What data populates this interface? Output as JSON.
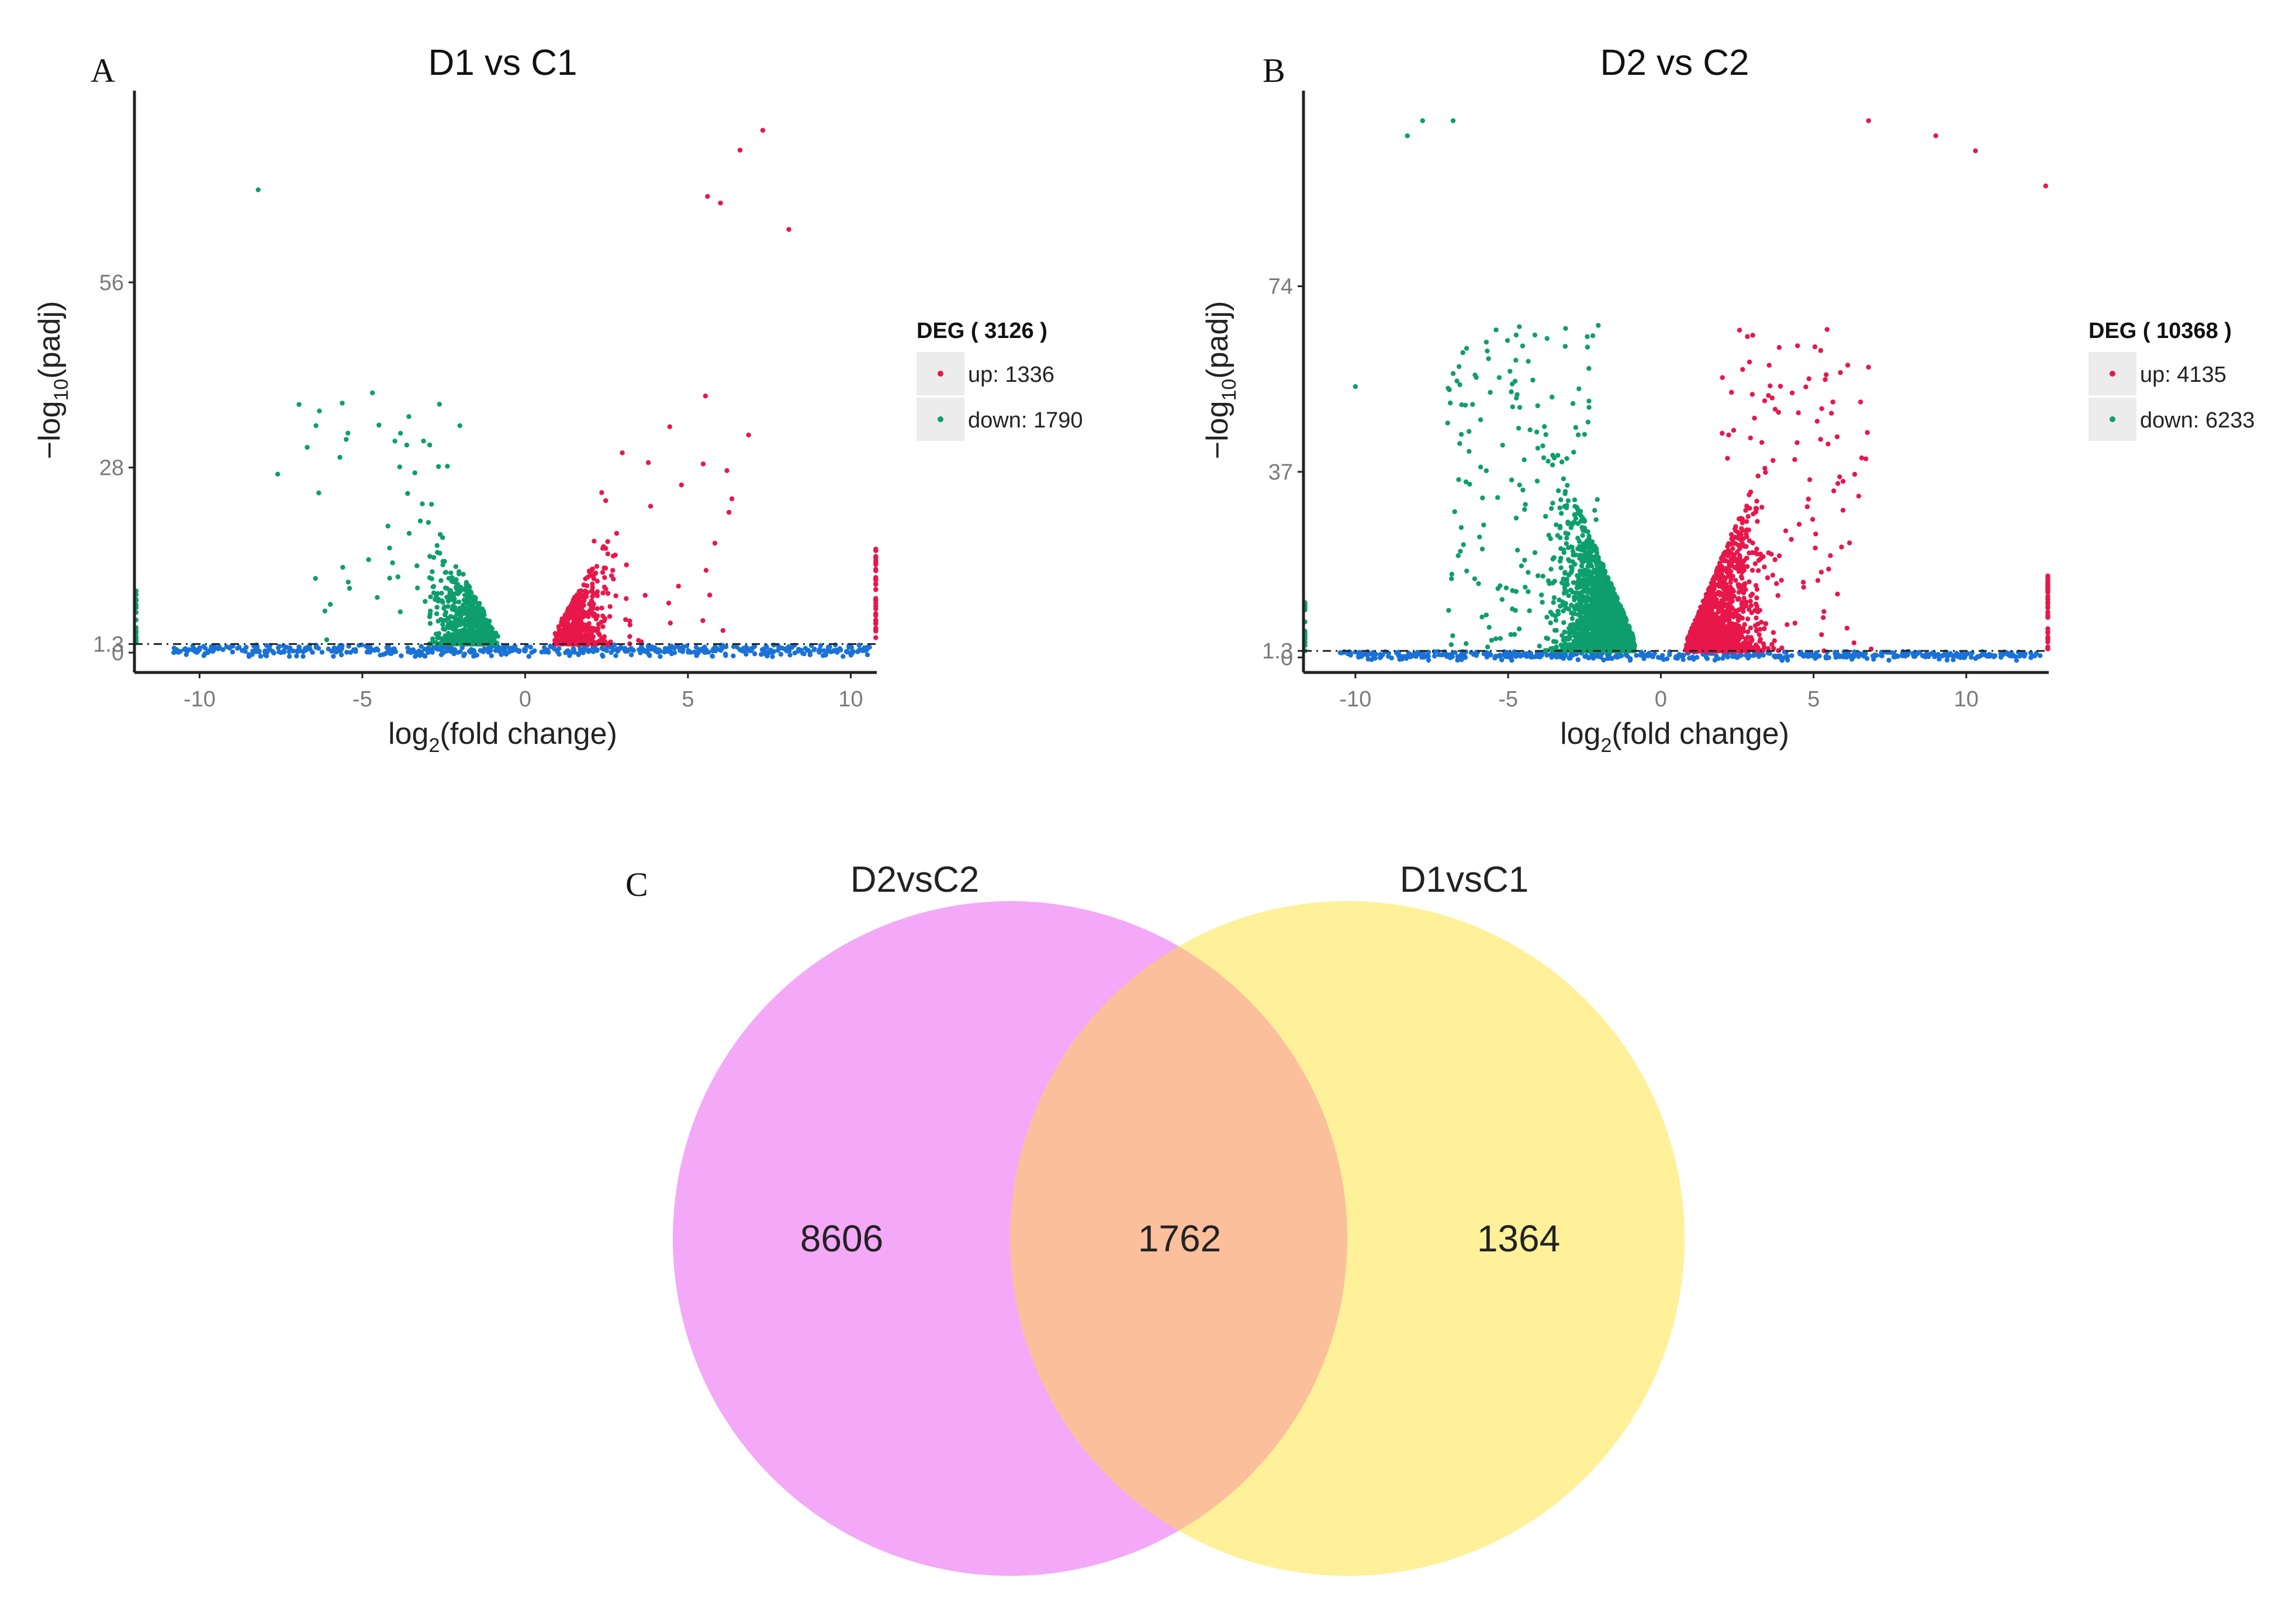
{
  "panels": {
    "A": {
      "letter": "A",
      "chart_data": {
        "type": "scatter",
        "title": "D1 vs C1",
        "xlabel": "log2(fold change)",
        "xlabel_main": "log",
        "xlabel_sub": "2",
        "xlabel_rest": "(fold change)",
        "ylabel": "-log10(padj)",
        "ylabel_main": "−log",
        "ylabel_sub": "10",
        "ylabel_rest": "(padj)",
        "xlim": [
          -12,
          10.8
        ],
        "ylim": [
          -3,
          85
        ],
        "xticks": [
          -10,
          -5,
          0,
          5,
          10
        ],
        "xtick_labels": [
          "-10",
          "-5",
          "0",
          "5",
          "10"
        ],
        "yticks": [
          0,
          1.3,
          28,
          56
        ],
        "ytick_labels": [
          "0",
          "1.3",
          "28",
          "56"
        ],
        "threshold": 1.3,
        "grid": false,
        "legend": {
          "title": "DEG ( 3126 )",
          "entries": [
            {
              "label": "up: 1336",
              "series": "up"
            },
            {
              "label": "down: 1790",
              "series": "down"
            }
          ],
          "placement": "right"
        },
        "series": [
          {
            "name": "up",
            "count": 1336,
            "color": "#e8174a"
          },
          {
            "name": "down",
            "count": 1790,
            "color": "#0e9e6e"
          },
          {
            "name": "not significant",
            "color": "#1a72d6"
          }
        ],
        "notable_points": [
          {
            "x": -8.2,
            "y": 70,
            "series": "down"
          },
          {
            "x": -7.6,
            "y": 27,
            "series": "down"
          },
          {
            "x": -4,
            "y": 32,
            "series": "down"
          },
          {
            "x": 7.3,
            "y": 82,
            "series": "up"
          },
          {
            "x": 6.6,
            "y": 76,
            "series": "up"
          },
          {
            "x": 8.1,
            "y": 64,
            "series": "up"
          },
          {
            "x": 5.6,
            "y": 69,
            "series": "up"
          },
          {
            "x": 6.0,
            "y": 68,
            "series": "up"
          }
        ]
      }
    },
    "B": {
      "letter": "B",
      "chart_data": {
        "type": "scatter",
        "title": "D2 vs C2",
        "xlabel": "log2(fold change)",
        "xlabel_main": "log",
        "xlabel_sub": "2",
        "xlabel_rest": "(fold change)",
        "ylabel": "-log10(padj)",
        "ylabel_main": "−log",
        "ylabel_sub": "10",
        "ylabel_rest": "(padj)",
        "xlim": [
          -11.7,
          12.7
        ],
        "ylim": [
          -3,
          113
        ],
        "xticks": [
          -10,
          -5,
          0,
          5,
          10
        ],
        "xtick_labels": [
          "-10",
          "-5",
          "0",
          "5",
          "10"
        ],
        "yticks": [
          0,
          1.3,
          37,
          74
        ],
        "ytick_labels": [
          "0",
          "1.3",
          "37",
          "74"
        ],
        "threshold": 1.3,
        "grid": false,
        "legend": {
          "title": "DEG ( 10368 )",
          "entries": [
            {
              "label": "up: 4135",
              "series": "up"
            },
            {
              "label": "down: 6233",
              "series": "down"
            }
          ],
          "placement": "right"
        },
        "series": [
          {
            "name": "up",
            "count": 4135,
            "color": "#e8174a"
          },
          {
            "name": "down",
            "count": 6233,
            "color": "#0e9e6e"
          },
          {
            "name": "not significant",
            "color": "#1a72d6"
          }
        ],
        "notable_points": [
          {
            "x": -7.8,
            "y": 108,
            "series": "down"
          },
          {
            "x": -6.8,
            "y": 108,
            "series": "down"
          },
          {
            "x": -8.3,
            "y": 104,
            "series": "down"
          },
          {
            "x": -10,
            "y": 54,
            "series": "down"
          },
          {
            "x": 6.8,
            "y": 107,
            "series": "up"
          },
          {
            "x": 9.0,
            "y": 104,
            "series": "up"
          },
          {
            "x": 10.3,
            "y": 101,
            "series": "up"
          },
          {
            "x": 12.6,
            "y": 94,
            "series": "up"
          }
        ]
      }
    },
    "C": {
      "letter": "C",
      "chart_data": {
        "type": "venn",
        "sets": [
          {
            "name": "D2vsC2",
            "color": "#f4a8f8"
          },
          {
            "name": "D1vsC1",
            "color": "#fff09a"
          }
        ],
        "overlap_color": "#fcbf9c",
        "regions": [
          {
            "label": "D2vsC2 only",
            "value": "8606"
          },
          {
            "label": "both",
            "value": "1762"
          },
          {
            "label": "D1vsC1 only",
            "value": "1364"
          }
        ]
      }
    }
  }
}
